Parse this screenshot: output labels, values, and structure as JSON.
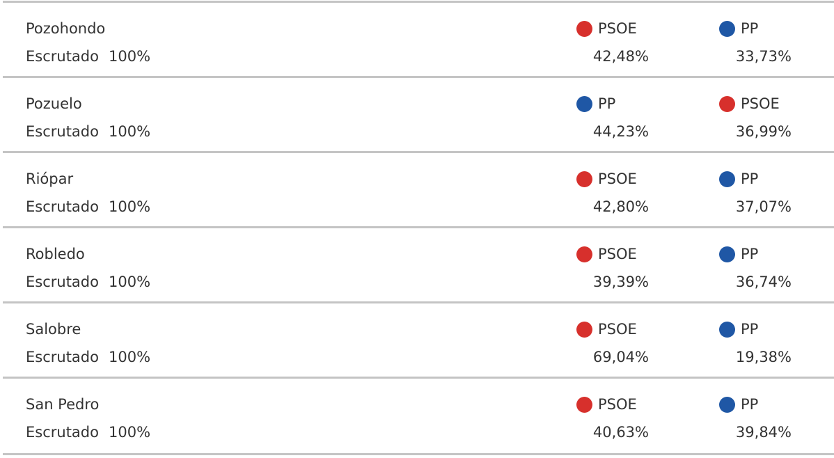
{
  "scrutiny_label": "Escrutado",
  "colors": {
    "PSOE": "#d7302c",
    "PP": "#1f57a5"
  },
  "rows": [
    {
      "municipality": "Pozohondo",
      "scrutiny": "100%",
      "first": {
        "party": "PSOE",
        "pct": "42,48%"
      },
      "second": {
        "party": "PP",
        "pct": "33,73%"
      }
    },
    {
      "municipality": "Pozuelo",
      "scrutiny": "100%",
      "first": {
        "party": "PP",
        "pct": "44,23%"
      },
      "second": {
        "party": "PSOE",
        "pct": "36,99%"
      }
    },
    {
      "municipality": "Riópar",
      "scrutiny": "100%",
      "first": {
        "party": "PSOE",
        "pct": "42,80%"
      },
      "second": {
        "party": "PP",
        "pct": "37,07%"
      }
    },
    {
      "municipality": "Robledo",
      "scrutiny": "100%",
      "first": {
        "party": "PSOE",
        "pct": "39,39%"
      },
      "second": {
        "party": "PP",
        "pct": "36,74%"
      }
    },
    {
      "municipality": "Salobre",
      "scrutiny": "100%",
      "first": {
        "party": "PSOE",
        "pct": "69,04%"
      },
      "second": {
        "party": "PP",
        "pct": "19,38%"
      }
    },
    {
      "municipality": "San Pedro",
      "scrutiny": "100%",
      "first": {
        "party": "PSOE",
        "pct": "40,63%"
      },
      "second": {
        "party": "PP",
        "pct": "39,84%"
      }
    }
  ]
}
